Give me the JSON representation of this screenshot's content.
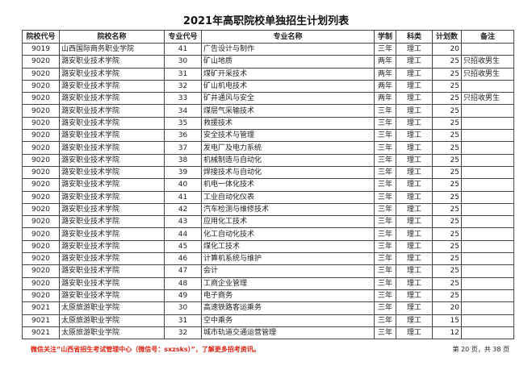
{
  "title": "2021年高职院校单独招生计划列表",
  "headers": [
    "院校代号",
    "院校名称",
    "专业代号",
    "专业名称",
    "学制",
    "科类",
    "计划数",
    "备注"
  ],
  "rows": [
    [
      "9019",
      "山西国际商务职业学院",
      "41",
      "广告设计与制作",
      "三年",
      "理工",
      "20",
      ""
    ],
    [
      "9020",
      "潞安职业技术学院",
      "30",
      "矿山地质",
      "两年",
      "理工",
      "25",
      "只招收男生"
    ],
    [
      "9020",
      "潞安职业技术学院",
      "31",
      "煤矿开采技术",
      "两年",
      "理工",
      "25",
      "只招收男生"
    ],
    [
      "9020",
      "潞安职业技术学院",
      "32",
      "矿山机电技术",
      "两年",
      "理工",
      "25",
      ""
    ],
    [
      "9020",
      "潞安职业技术学院",
      "33",
      "矿井通风与安全",
      "两年",
      "理工",
      "25",
      "只招收男生"
    ],
    [
      "9020",
      "潞安职业技术学院",
      "34",
      "煤层气采输技术",
      "三年",
      "理工",
      "25",
      ""
    ],
    [
      "9020",
      "潞安职业技术学院",
      "35",
      "救援技术",
      "三年",
      "理工",
      "25",
      ""
    ],
    [
      "9020",
      "潞安职业技术学院",
      "36",
      "安全技术与管理",
      "三年",
      "理工",
      "25",
      ""
    ],
    [
      "9020",
      "潞安职业技术学院",
      "37",
      "发电厂及电力系统",
      "三年",
      "理工",
      "25",
      ""
    ],
    [
      "9020",
      "潞安职业技术学院",
      "38",
      "机械制造与自动化",
      "三年",
      "理工",
      "25",
      ""
    ],
    [
      "9020",
      "潞安职业技术学院",
      "39",
      "焊接技术与自动化",
      "三年",
      "理工",
      "25",
      ""
    ],
    [
      "9020",
      "潞安职业技术学院",
      "40",
      "机电一体化技术",
      "三年",
      "理工",
      "25",
      ""
    ],
    [
      "9020",
      "潞安职业技术学院",
      "41",
      "工业自动化仪表",
      "三年",
      "理工",
      "25",
      ""
    ],
    [
      "9020",
      "潞安职业技术学院",
      "42",
      "汽车检测与维修技术",
      "三年",
      "理工",
      "25",
      ""
    ],
    [
      "9020",
      "潞安职业技术学院",
      "43",
      "应用化工技术",
      "三年",
      "理工",
      "25",
      ""
    ],
    [
      "9020",
      "潞安职业技术学院",
      "44",
      "化工自动化技术",
      "三年",
      "理工",
      "25",
      ""
    ],
    [
      "9020",
      "潞安职业技术学院",
      "45",
      "煤化工技术",
      "三年",
      "理工",
      "25",
      ""
    ],
    [
      "9020",
      "潞安职业技术学院",
      "46",
      "计算机系统与维护",
      "三年",
      "理工",
      "25",
      ""
    ],
    [
      "9020",
      "潞安职业技术学院",
      "47",
      "会计",
      "三年",
      "理工",
      "25",
      ""
    ],
    [
      "9020",
      "潞安职业技术学院",
      "48",
      "工商企业管理",
      "三年",
      "理工",
      "25",
      ""
    ],
    [
      "9020",
      "潞安职业技术学院",
      "49",
      "电子商务",
      "三年",
      "理工",
      "25",
      ""
    ],
    [
      "9021",
      "太原旅游职业学院",
      "30",
      "高速铁路客运乘务",
      "三年",
      "理工",
      "20",
      ""
    ],
    [
      "9021",
      "太原旅游职业学院",
      "31",
      "空中乘务",
      "三年",
      "理工",
      "15",
      ""
    ],
    [
      "9021",
      "太原旅游职业学院",
      "32",
      "城市轨道交通运营管理",
      "三年",
      "理工",
      "12",
      ""
    ]
  ],
  "footer": {
    "notice": "微信关注“山西省招生考试管理中心（微信号：sxzsks）”，了解更多招考资讯。",
    "page": "第 20 页，共 38 页"
  }
}
